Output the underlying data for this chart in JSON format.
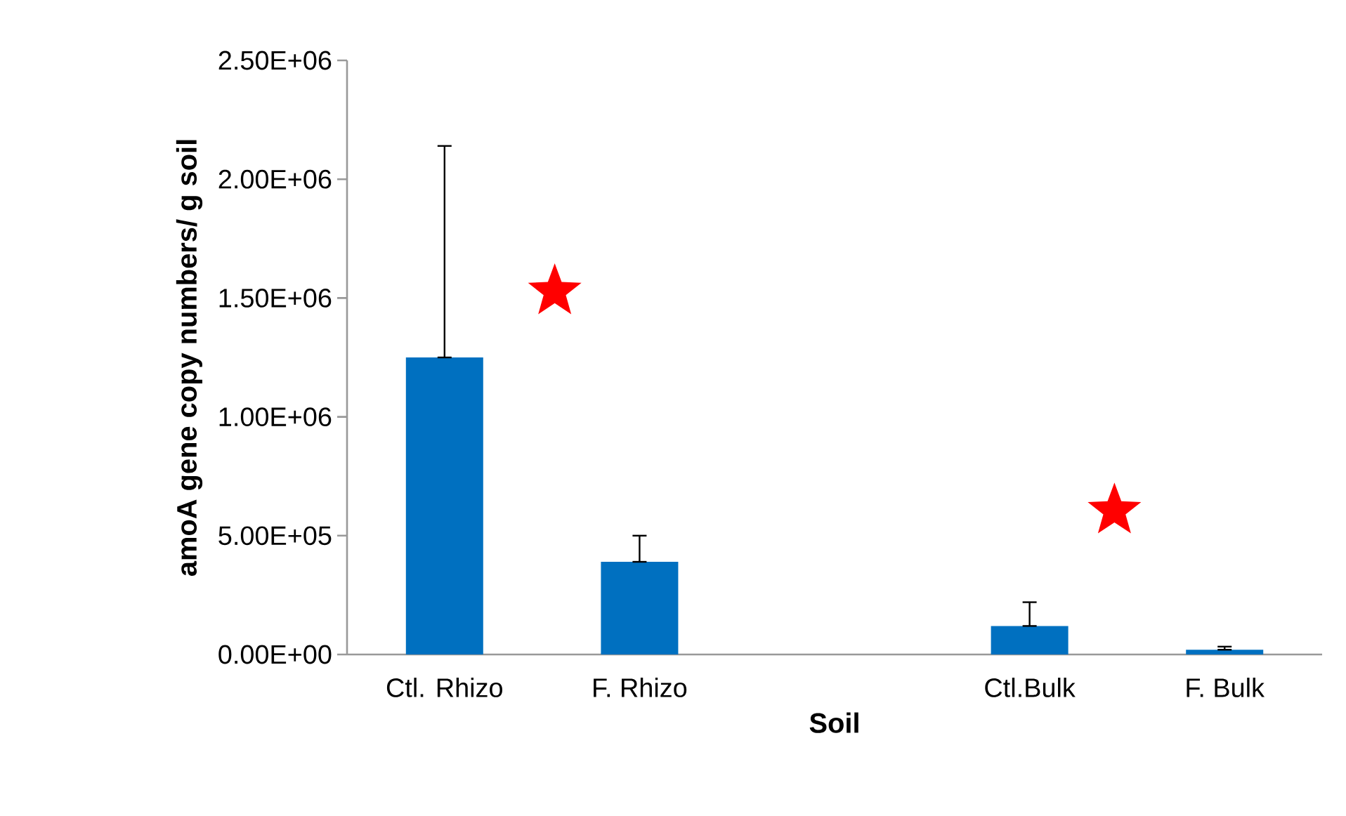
{
  "chart_data": {
    "type": "bar",
    "xlabel": "Soil",
    "ylabel": "amoA  gene copy numbers/ g soil",
    "categories": [
      "Ctl. Rhizo",
      "F. Rhizo",
      null,
      "Ctl.Bulk",
      "F. Bulk"
    ],
    "values": [
      1250000,
      390000,
      null,
      120000,
      20000
    ],
    "errors": [
      [
        1250000,
        2140000
      ],
      [
        390000,
        500000
      ],
      null,
      [
        120000,
        220000
      ],
      [
        20000,
        33000
      ]
    ],
    "color": "#0070c0",
    "ylim": [
      0,
      2500000
    ],
    "yticks": [
      {
        "value": 0,
        "label": "0.00E+00"
      },
      {
        "value": 500000,
        "label": "5.00E+05"
      },
      {
        "value": 1000000,
        "label": "1.00E+06"
      },
      {
        "value": 1500000,
        "label": "1.50E+06"
      },
      {
        "value": 2000000,
        "label": "2.00E+06"
      },
      {
        "value": 2500000,
        "label": "2.50E+06"
      }
    ],
    "grid": false
  }
}
